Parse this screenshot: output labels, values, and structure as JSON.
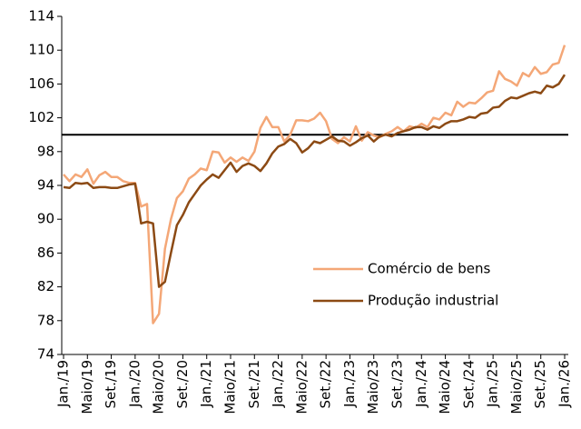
{
  "chart_data": {
    "type": "line",
    "categories": [
      "Jan./19",
      null,
      null,
      null,
      "Maio/19",
      null,
      null,
      null,
      "Set./19",
      null,
      null,
      null,
      "Jan./20",
      null,
      null,
      null,
      "Maio/20",
      null,
      null,
      null,
      "Set./20",
      null,
      null,
      null,
      "Jan./21",
      null,
      null,
      null,
      "Maio/21",
      null,
      null,
      null,
      "Set./21",
      null,
      null,
      null,
      "Jan./22",
      null,
      null,
      null,
      "Maio/22",
      null,
      null,
      null,
      "Set./22",
      null,
      null,
      null,
      "Jan./23",
      null,
      null,
      null,
      "Maio/23",
      null,
      null,
      null,
      "Set./23",
      null,
      null,
      null,
      "Jan./24",
      null,
      null,
      null,
      "Maio/24",
      null,
      null,
      null,
      "Set./24",
      null,
      null,
      null,
      "Jan./25",
      null,
      null,
      null,
      "Maio/25",
      null,
      null,
      null,
      "Set./25",
      null,
      null,
      null,
      "Jan./26"
    ],
    "series": [
      {
        "name": "Comércio de bens",
        "color": "#f4a777",
        "values": [
          95.3,
          94.5,
          95.3,
          95.0,
          95.9,
          94.2,
          95.2,
          95.6,
          95.0,
          95.0,
          94.5,
          94.3,
          94.3,
          91.5,
          91.8,
          77.7,
          78.8,
          86.5,
          90.0,
          92.5,
          93.3,
          94.8,
          95.3,
          96.0,
          95.8,
          98.0,
          97.9,
          96.7,
          97.3,
          96.8,
          97.3,
          96.9,
          98.0,
          100.8,
          102.1,
          100.9,
          100.9,
          99.2,
          100.0,
          101.7,
          101.7,
          101.6,
          101.9,
          102.6,
          101.6,
          99.5,
          99.0,
          99.7,
          99.2,
          101.0,
          99.3,
          100.3,
          99.9,
          99.7,
          100.1,
          100.4,
          100.9,
          100.4,
          101.0,
          100.8,
          101.3,
          100.9,
          102.0,
          101.8,
          102.6,
          102.3,
          103.9,
          103.3,
          103.8,
          103.7,
          104.3,
          105.0,
          105.2,
          107.5,
          106.6,
          106.3,
          105.8,
          107.3,
          106.9,
          108.0,
          107.2,
          107.4,
          108.3,
          108.5,
          110.6
        ]
      },
      {
        "name": "Produção industrial",
        "color": "#8c4a14",
        "values": [
          93.8,
          93.7,
          94.3,
          94.2,
          94.3,
          93.7,
          93.8,
          93.8,
          93.7,
          93.7,
          93.9,
          94.1,
          94.2,
          89.5,
          89.7,
          89.5,
          82.0,
          82.6,
          86.0,
          89.3,
          90.5,
          92.0,
          93.0,
          94.0,
          94.7,
          95.3,
          94.9,
          95.8,
          96.7,
          95.6,
          96.3,
          96.6,
          96.3,
          95.7,
          96.6,
          97.8,
          98.6,
          98.9,
          99.5,
          99.0,
          97.9,
          98.4,
          99.2,
          99.0,
          99.4,
          99.8,
          99.3,
          99.2,
          98.7,
          99.1,
          99.6,
          99.9,
          99.2,
          99.8,
          100.0,
          99.8,
          100.2,
          100.4,
          100.6,
          100.9,
          100.9,
          100.6,
          101.0,
          100.8,
          101.3,
          101.6,
          101.6,
          101.8,
          102.1,
          102.0,
          102.5,
          102.6,
          103.2,
          103.3,
          104.0,
          104.4,
          104.3,
          104.6,
          104.9,
          105.1,
          104.9,
          105.8,
          105.6,
          106.0,
          107.1
        ]
      }
    ],
    "ylim": [
      74,
      114
    ],
    "yticks": [
      74,
      78,
      82,
      86,
      90,
      94,
      98,
      102,
      106,
      110,
      114
    ],
    "reference_line": 100,
    "legend": "lower right"
  }
}
